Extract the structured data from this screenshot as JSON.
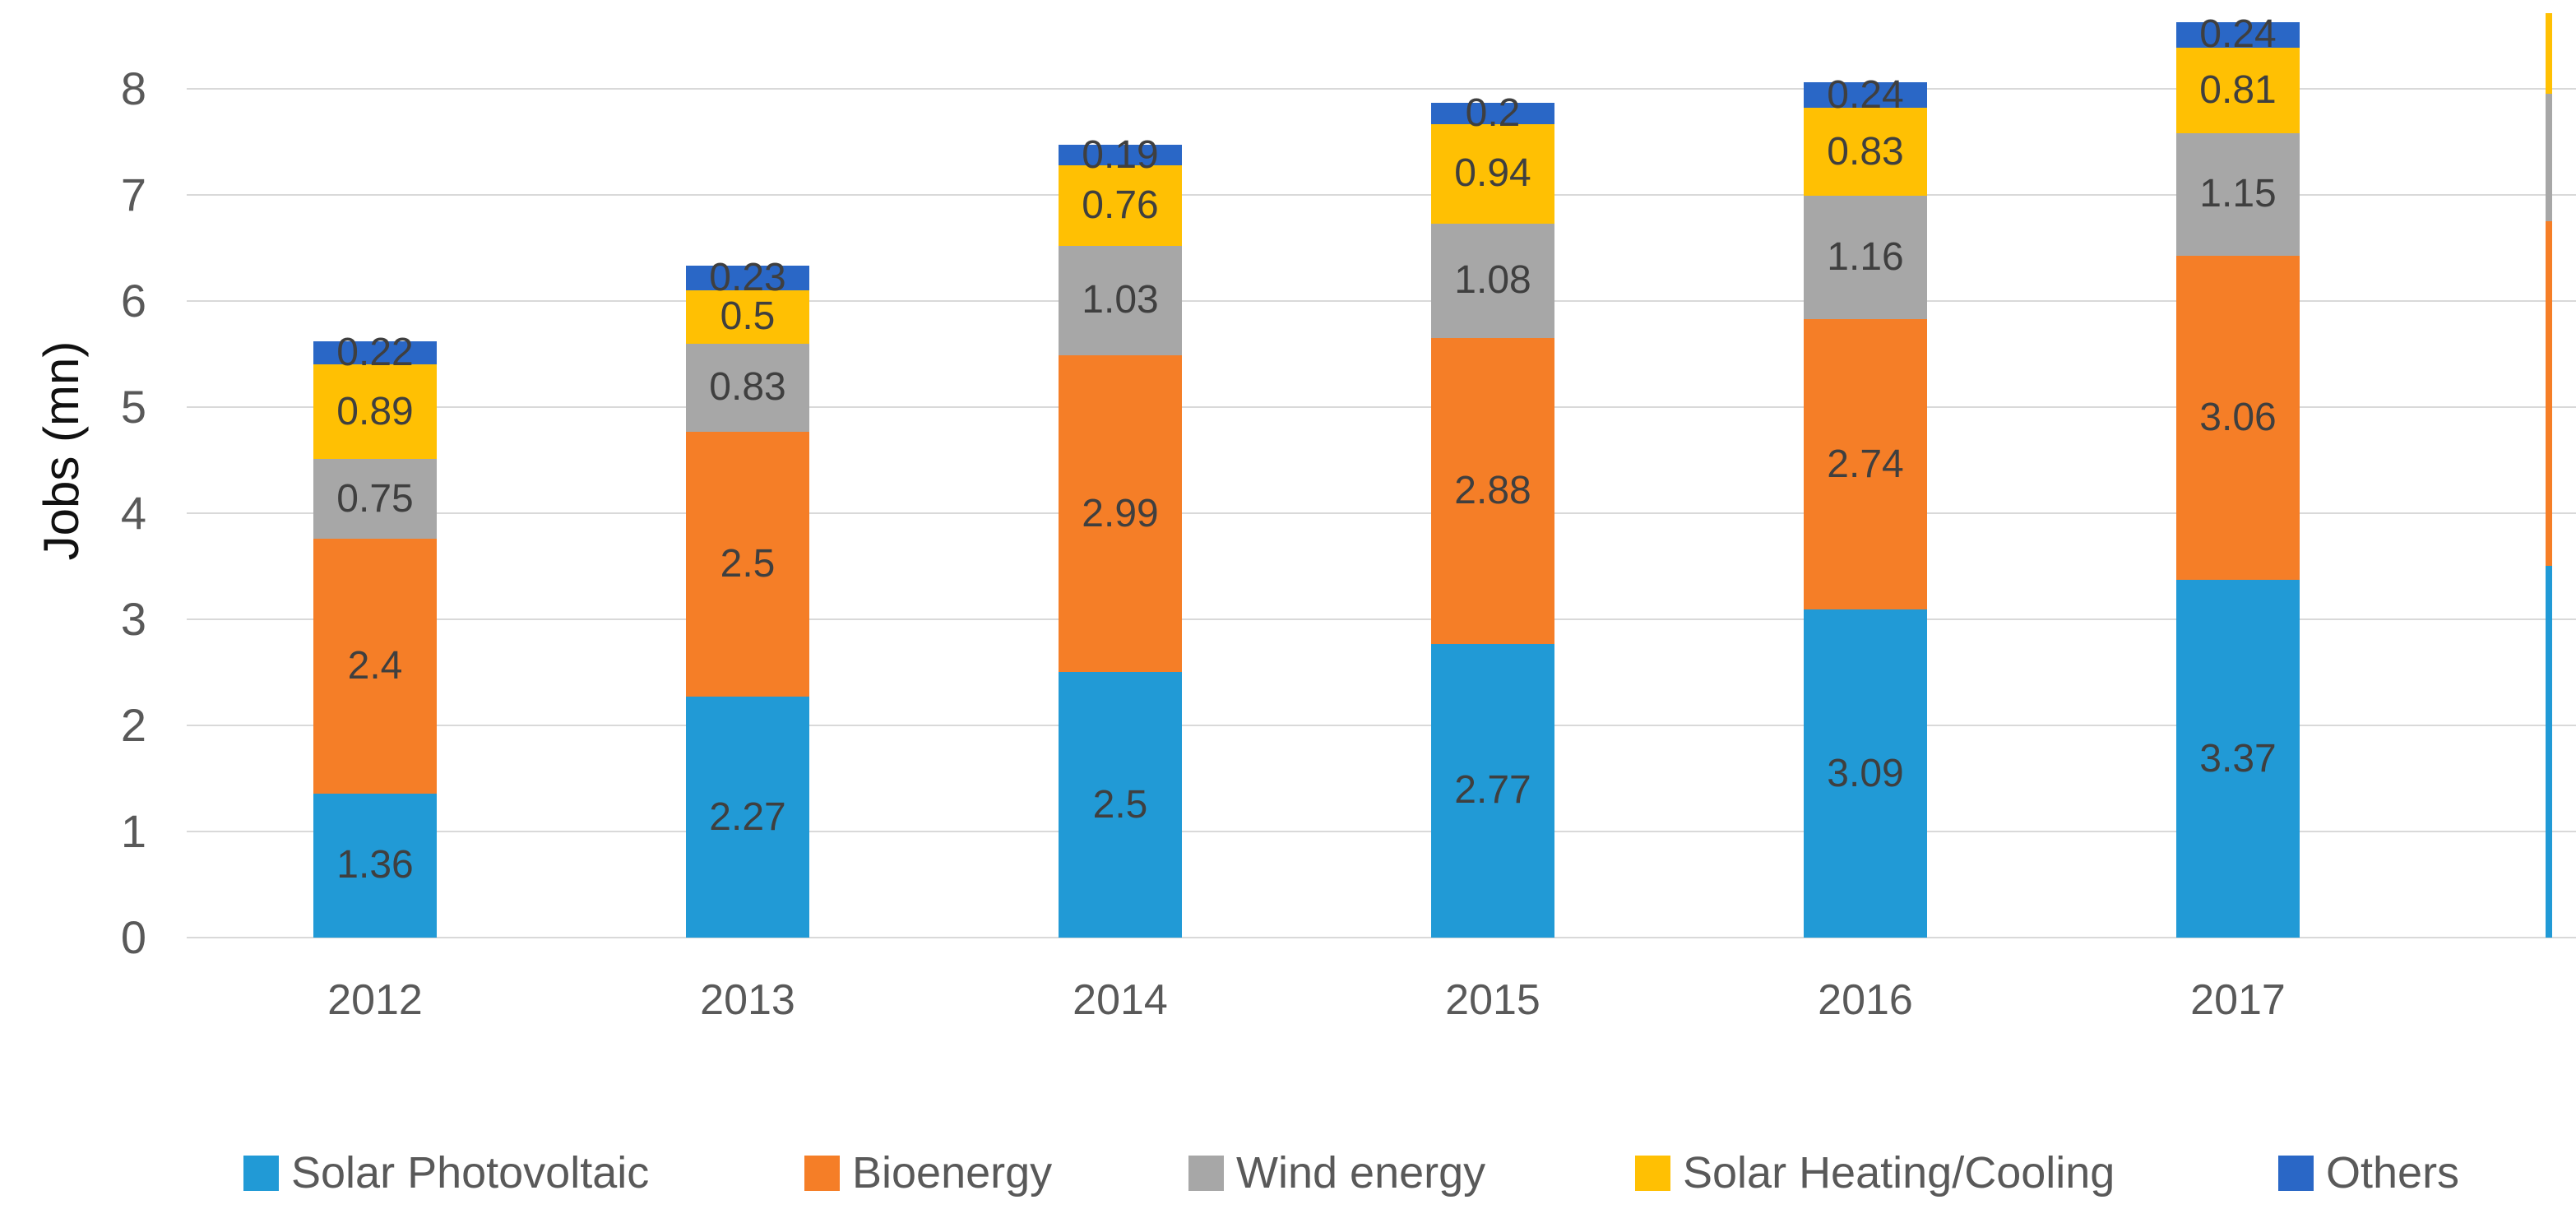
{
  "chart_data": {
    "type": "bar",
    "stacked": true,
    "title": "",
    "xlabel": "",
    "ylabel": "Jobs (mn)",
    "categories": [
      "2012",
      "2013",
      "2014",
      "2015",
      "2016",
      "2017"
    ],
    "series": [
      {
        "name": "Solar Photovoltaic",
        "color": "#219ad6",
        "values": [
          1.36,
          2.27,
          2.5,
          2.77,
          3.09,
          3.37
        ]
      },
      {
        "name": "Bioenergy",
        "color": "#f57e27",
        "values": [
          2.4,
          2.5,
          2.99,
          2.88,
          2.74,
          3.06
        ]
      },
      {
        "name": "Wind energy",
        "color": "#a7a7a7",
        "values": [
          0.75,
          0.83,
          1.03,
          1.08,
          1.16,
          1.15
        ]
      },
      {
        "name": "Solar Heating/Cooling",
        "color": "#ffc003",
        "values": [
          0.89,
          0.5,
          0.76,
          0.94,
          0.83,
          0.81
        ]
      },
      {
        "name": "Others",
        "color": "#2a67c6",
        "values": [
          0.22,
          0.23,
          0.19,
          0.2,
          0.24,
          0.24
        ]
      }
    ],
    "data_labels_shown": true,
    "ylim": [
      0,
      8
    ],
    "yticks": [
      0,
      1,
      2,
      3,
      4,
      5,
      6,
      7,
      8
    ],
    "grid": true,
    "legend_position": "bottom",
    "partial_bar_right_edge": {
      "note": "unlabeled next-year bar clipped at the right edge of the image",
      "estimated_values": [
        3.5,
        3.25,
        1.2,
        0.76
      ]
    },
    "colors": {
      "gridline": "#d9d9d9",
      "axis_text": "#595959",
      "data_label_text": "#3f3f3f",
      "y_title_text": "#111111",
      "background": "#ffffff"
    }
  }
}
